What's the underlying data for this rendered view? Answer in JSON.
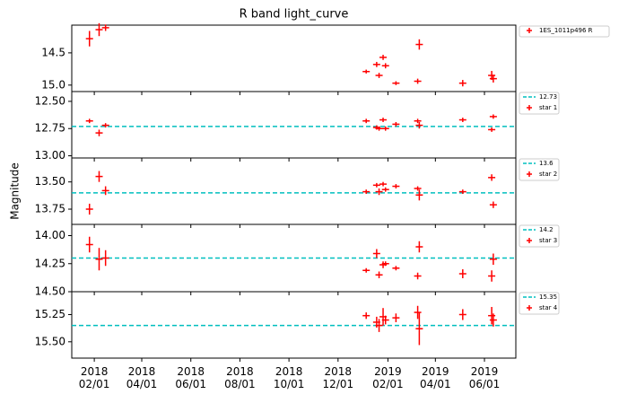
{
  "chart_data": [
    {
      "type": "scatter",
      "title": "R band light_curve",
      "x": [
        "2018-01-26",
        "2018-02-07",
        "2018-02-15",
        "2019-01-05",
        "2019-01-18",
        "2019-01-21",
        "2019-01-26",
        "2019-01-29",
        "2019-02-11",
        "2019-03-10",
        "2019-03-12",
        "2019-05-05",
        "2019-06-10",
        "2019-06-12"
      ],
      "series": [
        {
          "name": "1ES_1011p496 R",
          "color": "#ff0000",
          "values": [
            14.28,
            14.14,
            14.11,
            14.79,
            14.68,
            14.85,
            14.57,
            14.7,
            14.97,
            14.94,
            14.37,
            14.97,
            14.85,
            14.9
          ],
          "errors": [
            0.12,
            0.1,
            0.05,
            0.03,
            0.04,
            0.04,
            0.04,
            0.04,
            0.03,
            0.04,
            0.08,
            0.05,
            0.07,
            0.06
          ]
        }
      ],
      "ylim": [
        15.1,
        14.07
      ],
      "yticks": [
        14.5,
        {
          "value": 15,
          "label": "15.0"
        }
      ]
    },
    {
      "type": "scatter",
      "x": [
        "2018-01-26",
        "2018-02-07",
        "2018-02-15",
        "2019-01-05",
        "2019-01-18",
        "2019-01-21",
        "2019-01-26",
        "2019-01-29",
        "2019-02-11",
        "2019-03-10",
        "2019-03-12",
        "2019-05-05",
        "2019-06-10",
        "2019-06-12"
      ],
      "reference": {
        "value": 12.73,
        "color": "#00bfbf"
      },
      "series": [
        {
          "name": "star 1",
          "color": "#ff0000",
          "values": [
            12.68,
            12.79,
            12.72,
            12.68,
            12.74,
            12.75,
            12.67,
            12.75,
            12.71,
            12.68,
            12.72,
            12.67,
            12.76,
            12.64
          ],
          "errors": [
            0.02,
            0.03,
            0.02,
            0.02,
            0.02,
            0.02,
            0.02,
            0.02,
            0.02,
            0.02,
            0.03,
            0.02,
            0.02,
            0.02
          ]
        }
      ],
      "ylim": [
        13.02,
        12.41
      ],
      "yticks": [
        {
          "value": 12.5,
          "label": "12.50"
        },
        12.75,
        {
          "value": 13,
          "label": "13.00"
        }
      ]
    },
    {
      "type": "scatter",
      "ylabel": "Magnitude",
      "x": [
        "2018-01-26",
        "2018-02-07",
        "2018-02-15",
        "2019-01-05",
        "2019-01-18",
        "2019-01-21",
        "2019-01-26",
        "2019-01-29",
        "2019-02-11",
        "2019-03-10",
        "2019-03-12",
        "2019-05-05",
        "2019-06-10",
        "2019-06-12"
      ],
      "reference": {
        "value": 13.6,
        "color": "#00bfbf"
      },
      "series": [
        {
          "name": "star 2",
          "color": "#ff0000",
          "values": [
            13.75,
            13.45,
            13.58,
            13.59,
            13.53,
            13.59,
            13.52,
            13.57,
            13.54,
            13.56,
            13.62,
            13.59,
            13.46,
            13.71
          ],
          "errors": [
            0.05,
            0.05,
            0.04,
            0.02,
            0.02,
            0.03,
            0.02,
            0.02,
            0.02,
            0.02,
            0.05,
            0.02,
            0.03,
            0.03
          ]
        }
      ],
      "ylim": [
        13.89,
        13.28
      ],
      "yticks": [
        {
          "value": 13.5,
          "label": "13.50"
        },
        13.75
      ]
    },
    {
      "type": "scatter",
      "x": [
        "2018-01-26",
        "2018-02-07",
        "2018-02-15",
        "2019-01-05",
        "2019-01-18",
        "2019-01-21",
        "2019-01-26",
        "2019-01-29",
        "2019-02-11",
        "2019-03-10",
        "2019-03-12",
        "2019-05-05",
        "2019-06-10",
        "2019-06-12"
      ],
      "reference": {
        "value": 14.2,
        "color": "#00bfbf"
      },
      "series": [
        {
          "name": "star 3",
          "color": "#ff0000",
          "values": [
            14.08,
            14.21,
            14.2,
            14.31,
            14.16,
            14.35,
            14.26,
            14.25,
            14.29,
            14.36,
            14.1,
            14.34,
            14.36,
            14.21
          ],
          "errors": [
            0.07,
            0.1,
            0.07,
            0.02,
            0.04,
            0.03,
            0.03,
            0.02,
            0.02,
            0.03,
            0.05,
            0.04,
            0.05,
            0.05
          ]
        }
      ],
      "ylim": [
        14.5,
        13.9
      ],
      "yticks": [
        {
          "value": 14,
          "label": "14.00"
        },
        14.25,
        {
          "value": 14.5,
          "label": "14.50"
        }
      ]
    },
    {
      "type": "scatter",
      "x": [
        "2018-01-26",
        "2018-02-07",
        "2018-02-15",
        "2019-01-05",
        "2019-01-18",
        "2019-01-21",
        "2019-01-26",
        "2019-01-29",
        "2019-02-11",
        "2019-03-10",
        "2019-03-12",
        "2019-05-05",
        "2019-06-10",
        "2019-06-12"
      ],
      "reference": {
        "value": 15.35,
        "color": "#00bfbf"
      },
      "series": [
        {
          "name": "star 4",
          "color": "#ff0000",
          "values": [
            null,
            null,
            null,
            15.26,
            15.32,
            15.35,
            15.27,
            15.3,
            15.28,
            15.23,
            15.38,
            15.25,
            15.26,
            15.3
          ],
          "errors": [
            null,
            null,
            null,
            0.03,
            0.05,
            0.06,
            0.08,
            0.04,
            0.04,
            0.06,
            0.15,
            0.05,
            0.08,
            0.06
          ]
        }
      ],
      "ylim": [
        15.65,
        15.04
      ],
      "yticks": [
        15.25,
        {
          "value": 15.5,
          "label": "15.50"
        }
      ],
      "xlim": [
        "2018-01-04",
        "2019-07-10"
      ],
      "xticks": [
        {
          "value": "2018-02-01",
          "label": "2018\n02/01"
        },
        {
          "value": "2018-04-01",
          "label": "2018\n04/01"
        },
        {
          "value": "2018-06-01",
          "label": "2018\n06/01"
        },
        {
          "value": "2018-08-01",
          "label": "2018\n08/01"
        },
        {
          "value": "2018-10-01",
          "label": "2018\n10/01"
        },
        {
          "value": "2018-12-01",
          "label": "2018\n12/01"
        },
        {
          "value": "2019-02-01",
          "label": "2019\n02/01"
        },
        {
          "value": "2019-04-01",
          "label": "2019\n04/01"
        },
        {
          "value": "2019-06-01",
          "label": "2019\n06/01"
        }
      ]
    }
  ]
}
